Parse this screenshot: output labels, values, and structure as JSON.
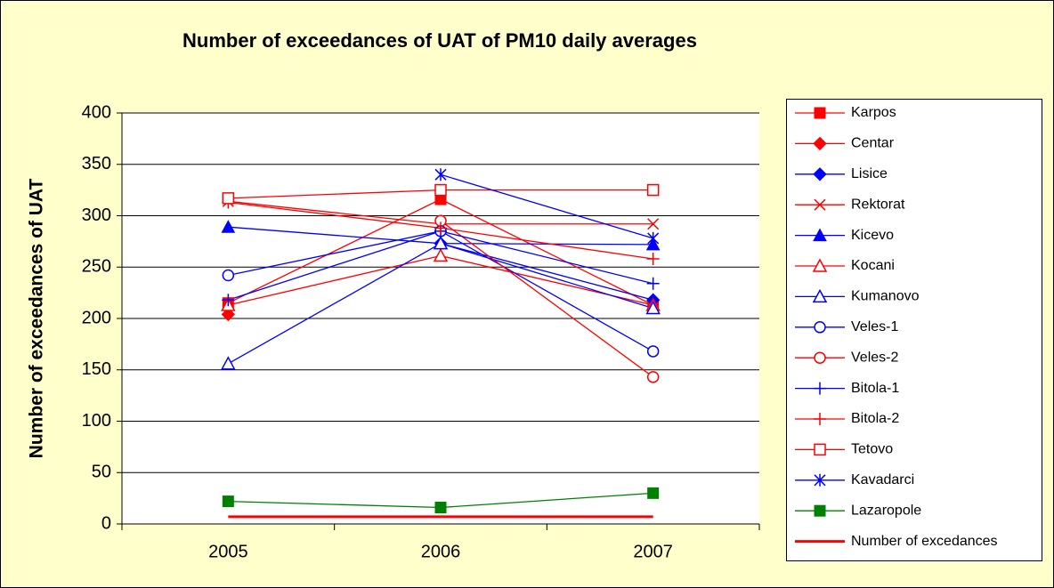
{
  "chart_data": {
    "type": "line",
    "title": "Number of exceedances of UAT of PM10 daily averages",
    "y_label": "Number of exceedances of UAT",
    "categories": [
      "2005",
      "2006",
      "2007"
    ],
    "ylim": [
      0,
      400
    ],
    "yticks": [
      0,
      50,
      100,
      150,
      200,
      250,
      300,
      350,
      400
    ],
    "grid": true,
    "legend": "right",
    "series": [
      {
        "name": "Karpos",
        "color": "#ff0000",
        "marker": "square",
        "values": [
          215,
          316,
          213
        ]
      },
      {
        "name": "Centar",
        "color": "#ff0000",
        "marker": "diamond",
        "values": [
          204,
          null,
          null
        ]
      },
      {
        "name": "Lisice",
        "color": "#0000ff",
        "marker": "diamond",
        "values": [
          null,
          273,
          218
        ]
      },
      {
        "name": "Rektorat",
        "color": "#ff0000",
        "marker": "x",
        "values": [
          314,
          292,
          292
        ]
      },
      {
        "name": "Kicevo",
        "color": "#0000ff",
        "marker": "triangle",
        "values": [
          289,
          273,
          272
        ]
      },
      {
        "name": "Kocani",
        "color": "#ff0000",
        "marker": "triangle-open",
        "values": [
          213,
          261,
          213
        ]
      },
      {
        "name": "Kumanovo",
        "color": "#0000ff",
        "marker": "triangle-open",
        "values": [
          156,
          273,
          210
        ]
      },
      {
        "name": "Veles-1",
        "color": "#0000ff",
        "marker": "circle-open",
        "values": [
          242,
          285,
          168
        ]
      },
      {
        "name": "Veles-2",
        "color": "#ff0000",
        "marker": "circle-open",
        "values": [
          null,
          295,
          143
        ]
      },
      {
        "name": "Bitola-1",
        "color": "#0000ff",
        "marker": "plus",
        "values": [
          218,
          285,
          234
        ]
      },
      {
        "name": "Bitola-2",
        "color": "#ff0000",
        "marker": "plus",
        "values": [
          313,
          288,
          258
        ]
      },
      {
        "name": "Tetovo",
        "color": "#ff0000",
        "marker": "square-open",
        "values": [
          317,
          325,
          325
        ]
      },
      {
        "name": "Kavadarci",
        "color": "#0000ff",
        "marker": "star",
        "values": [
          null,
          340,
          278
        ]
      },
      {
        "name": "Lazaropole",
        "color": "#008000",
        "marker": "square",
        "values": [
          22,
          16,
          30
        ]
      },
      {
        "name": "Number of excedances",
        "color": "#ff0000",
        "marker": "none",
        "width": 3,
        "values": [
          7,
          7,
          7
        ]
      }
    ]
  }
}
